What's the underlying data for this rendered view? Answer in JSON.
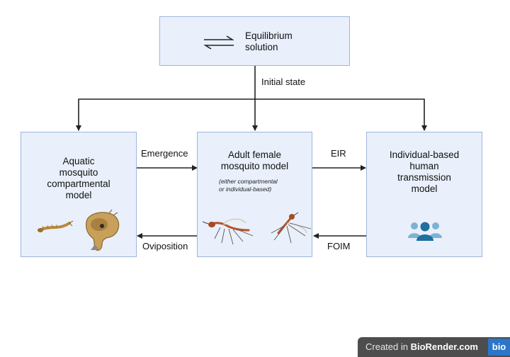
{
  "boxes": {
    "equilibrium": {
      "title": "Equilibrium\nsolution"
    },
    "aquatic": {
      "title": "Aquatic\nmosquito\ncompartmental\nmodel"
    },
    "adult": {
      "title": "Adult female\nmosquito model",
      "subtitle": "(either compartmental\nor individual-based)"
    },
    "human": {
      "title": "Individual-based\nhuman\ntransmission\nmodel"
    }
  },
  "arrows": {
    "initial_state": "Initial state",
    "emergence": "Emergence",
    "oviposition": "Oviposition",
    "eir": "EIR",
    "foim": "FOIM"
  },
  "icons": [
    "equilibrium-arrows-icon",
    "mosquito-larva-icon",
    "mosquito-pupa-icon",
    "mosquito-icon",
    "people-group-icon"
  ],
  "colors": {
    "box_fill": "#e9f0fb",
    "box_border": "#9db5dd",
    "arrow": "#222222",
    "people": "#1f6f9f"
  },
  "footer": {
    "prefix": "Created in ",
    "brand": "BioRender.com",
    "logo": "bio"
  }
}
